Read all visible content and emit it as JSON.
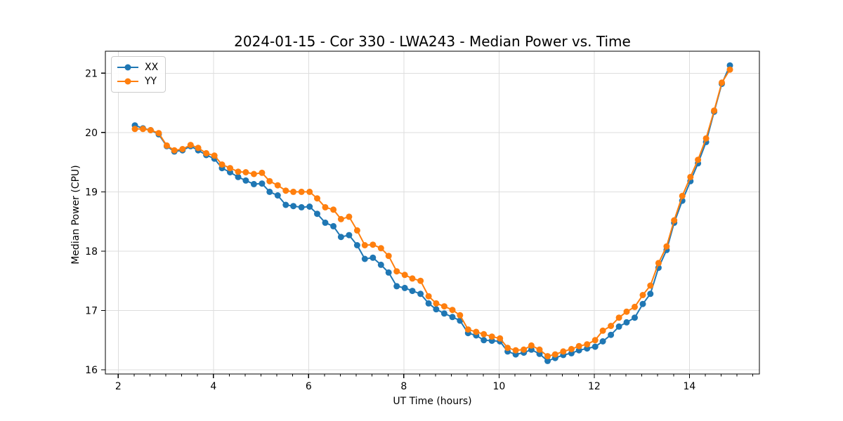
{
  "page": {
    "background_color": "#ffffff"
  },
  "chart_data": {
    "type": "line",
    "title": "2024-01-15 - Cor 330 - LWA243 - Median Power vs. Time",
    "xlabel": "UT Time (hours)",
    "ylabel": "Median Power (CPU)",
    "xlim": [
      1.73,
      15.47
    ],
    "ylim": [
      15.93,
      21.37
    ],
    "x_major_ticks": [
      2,
      4,
      6,
      8,
      10,
      12,
      14
    ],
    "x_major_tick_labels": [
      "2",
      "4",
      "6",
      "8",
      "10",
      "12",
      "14"
    ],
    "x_minor_tick_step": 0.33333,
    "y_major_ticks": [
      16,
      17,
      18,
      19,
      20,
      21
    ],
    "y_major_tick_labels": [
      "16",
      "17",
      "18",
      "19",
      "20",
      "21"
    ],
    "grid": true,
    "grid_color": "#dddddd",
    "spine_color": "#000000",
    "legend_position": "upper-left",
    "x": [
      2.35,
      2.52,
      2.68,
      2.85,
      3.02,
      3.18,
      3.35,
      3.52,
      3.68,
      3.85,
      4.02,
      4.18,
      4.35,
      4.52,
      4.68,
      4.85,
      5.02,
      5.18,
      5.35,
      5.52,
      5.68,
      5.85,
      6.02,
      6.18,
      6.35,
      6.52,
      6.68,
      6.85,
      7.02,
      7.18,
      7.35,
      7.52,
      7.68,
      7.85,
      8.02,
      8.18,
      8.35,
      8.52,
      8.68,
      8.85,
      9.02,
      9.18,
      9.35,
      9.52,
      9.68,
      9.85,
      10.02,
      10.18,
      10.35,
      10.52,
      10.68,
      10.85,
      11.02,
      11.18,
      11.35,
      11.52,
      11.68,
      11.85,
      12.02,
      12.18,
      12.35,
      12.52,
      12.68,
      12.85,
      13.02,
      13.18,
      13.35,
      13.52,
      13.68,
      13.85,
      14.02,
      14.18,
      14.35,
      14.52,
      14.68,
      14.85
    ],
    "series": [
      {
        "name": "XX",
        "color": "#1f77b4",
        "values": [
          20.12,
          20.07,
          20.04,
          19.97,
          19.77,
          19.68,
          19.7,
          19.77,
          19.7,
          19.62,
          19.56,
          19.4,
          19.33,
          19.25,
          19.19,
          19.13,
          19.14,
          19.0,
          18.94,
          18.78,
          18.76,
          18.74,
          18.75,
          18.63,
          18.48,
          18.42,
          18.24,
          18.27,
          18.1,
          17.87,
          17.89,
          17.77,
          17.64,
          17.41,
          17.38,
          17.33,
          17.28,
          17.12,
          17.02,
          16.95,
          16.89,
          16.83,
          16.62,
          16.58,
          16.5,
          16.49,
          16.48,
          16.31,
          16.26,
          16.29,
          16.34,
          16.27,
          16.15,
          16.2,
          16.25,
          16.28,
          16.33,
          16.36,
          16.39,
          16.48,
          16.59,
          16.73,
          16.8,
          16.88,
          17.11,
          17.28,
          17.72,
          18.02,
          18.48,
          18.85,
          19.18,
          19.48,
          19.84,
          20.35,
          20.82,
          21.13
        ]
      },
      {
        "name": "YY",
        "color": "#ff7f0e",
        "values": [
          20.06,
          20.06,
          20.04,
          19.99,
          19.78,
          19.7,
          19.72,
          19.79,
          19.74,
          19.65,
          19.61,
          19.46,
          19.4,
          19.34,
          19.33,
          19.3,
          19.32,
          19.18,
          19.11,
          19.02,
          19.0,
          19.0,
          19.0,
          18.89,
          18.74,
          18.7,
          18.54,
          18.58,
          18.35,
          18.1,
          18.11,
          18.05,
          17.92,
          17.66,
          17.6,
          17.54,
          17.5,
          17.24,
          17.12,
          17.07,
          17.01,
          16.92,
          16.68,
          16.64,
          16.6,
          16.56,
          16.53,
          16.37,
          16.33,
          16.34,
          16.41,
          16.34,
          16.23,
          16.26,
          16.31,
          16.35,
          16.4,
          16.43,
          16.5,
          16.66,
          16.74,
          16.88,
          16.98,
          17.06,
          17.26,
          17.42,
          17.8,
          18.08,
          18.52,
          18.93,
          19.25,
          19.54,
          19.9,
          20.37,
          20.84,
          21.06
        ]
      }
    ]
  }
}
